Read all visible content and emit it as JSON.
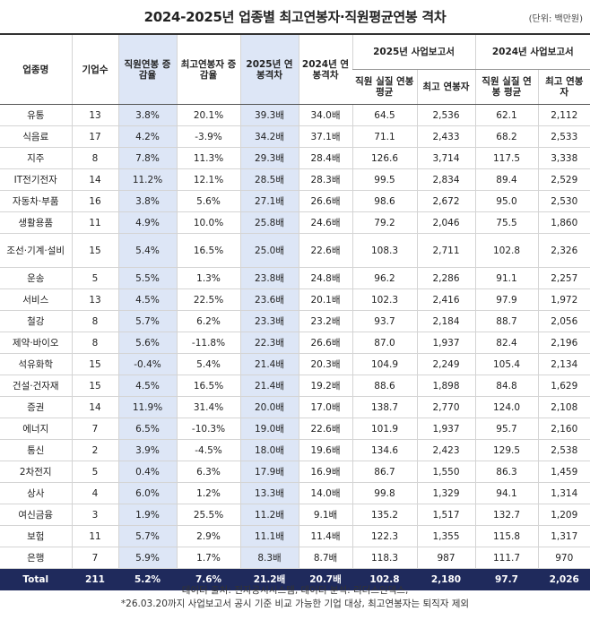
{
  "header": {
    "title": "2024-2025년 업종별 최고연봉자·직원평균연봉 격차",
    "unit": "(단위: 백만원)"
  },
  "table": {
    "columns": [
      "업종명",
      "기업수",
      "직원연봉 증감율",
      "최고연봉자 증감율",
      "2025년 연봉격차",
      "2024년 연봉격차"
    ],
    "groups": [
      "2025년 사업보고서",
      "2024년 사업보고서"
    ],
    "subcolumns": [
      "직원 실질 연봉 평균",
      "최고 연봉자",
      "직원 실질 연봉 평균",
      "최고 연봉자"
    ],
    "rows": [
      [
        "유통",
        "13",
        "3.8%",
        "20.1%",
        "39.3배",
        "34.0배",
        "64.5",
        "2,536",
        "62.1",
        "2,112"
      ],
      [
        "식음료",
        "17",
        "4.2%",
        "-3.9%",
        "34.2배",
        "37.1배",
        "71.1",
        "2,433",
        "68.2",
        "2,533"
      ],
      [
        "지주",
        "8",
        "7.8%",
        "11.3%",
        "29.3배",
        "28.4배",
        "126.6",
        "3,714",
        "117.5",
        "3,338"
      ],
      [
        "IT전기전자",
        "14",
        "11.2%",
        "12.1%",
        "28.5배",
        "28.3배",
        "99.5",
        "2,834",
        "89.4",
        "2,529"
      ],
      [
        "자동차·부품",
        "16",
        "3.8%",
        "5.6%",
        "27.1배",
        "26.6배",
        "98.6",
        "2,672",
        "95.0",
        "2,530"
      ],
      [
        "생활용품",
        "11",
        "4.9%",
        "10.0%",
        "25.8배",
        "24.6배",
        "79.2",
        "2,046",
        "75.5",
        "1,860"
      ],
      [
        "조선·기계·설비",
        "15",
        "5.4%",
        "16.5%",
        "25.0배",
        "22.6배",
        "108.3",
        "2,711",
        "102.8",
        "2,326"
      ],
      [
        "운송",
        "5",
        "5.5%",
        "1.3%",
        "23.8배",
        "24.8배",
        "96.2",
        "2,286",
        "91.1",
        "2,257"
      ],
      [
        "서비스",
        "13",
        "4.5%",
        "22.5%",
        "23.6배",
        "20.1배",
        "102.3",
        "2,416",
        "97.9",
        "1,972"
      ],
      [
        "철강",
        "8",
        "5.7%",
        "6.2%",
        "23.3배",
        "23.2배",
        "93.7",
        "2,184",
        "88.7",
        "2,056"
      ],
      [
        "제약·바이오",
        "8",
        "5.6%",
        "-11.8%",
        "22.3배",
        "26.6배",
        "87.0",
        "1,937",
        "82.4",
        "2,196"
      ],
      [
        "석유화학",
        "15",
        "-0.4%",
        "5.4%",
        "21.4배",
        "20.3배",
        "104.9",
        "2,249",
        "105.4",
        "2,134"
      ],
      [
        "건설·건자재",
        "15",
        "4.5%",
        "16.5%",
        "21.4배",
        "19.2배",
        "88.6",
        "1,898",
        "84.8",
        "1,629"
      ],
      [
        "증권",
        "14",
        "11.9%",
        "31.4%",
        "20.0배",
        "17.0배",
        "138.7",
        "2,770",
        "124.0",
        "2,108"
      ],
      [
        "에너지",
        "7",
        "6.5%",
        "-10.3%",
        "19.0배",
        "22.6배",
        "101.9",
        "1,937",
        "95.7",
        "2,160"
      ],
      [
        "통신",
        "2",
        "3.9%",
        "-4.5%",
        "18.0배",
        "19.6배",
        "134.6",
        "2,423",
        "129.5",
        "2,538"
      ],
      [
        "2차전지",
        "5",
        "0.4%",
        "6.3%",
        "17.9배",
        "16.9배",
        "86.7",
        "1,550",
        "86.3",
        "1,459"
      ],
      [
        "상사",
        "4",
        "6.0%",
        "1.2%",
        "13.3배",
        "14.0배",
        "99.8",
        "1,329",
        "94.1",
        "1,314"
      ],
      [
        "여신금융",
        "3",
        "1.9%",
        "25.5%",
        "11.2배",
        "9.1배",
        "135.2",
        "1,517",
        "132.7",
        "1,209"
      ],
      [
        "보험",
        "11",
        "5.7%",
        "2.9%",
        "11.1배",
        "11.4배",
        "122.3",
        "1,355",
        "115.8",
        "1,317"
      ],
      [
        "은행",
        "7",
        "5.9%",
        "1.7%",
        "8.3배",
        "8.7배",
        "118.3",
        "987",
        "111.7",
        "970"
      ]
    ],
    "total": [
      "Total",
      "211",
      "5.2%",
      "7.6%",
      "21.2배",
      "20.7배",
      "102.8",
      "2,180",
      "97.7",
      "2,026"
    ]
  },
  "footer": {
    "source": "데이터 출처: 전자공시시스템, 데이터 분석: 리더스인덱스,",
    "note": "*26.03.20까지 사업보고서 공시 기준 비교 가능한 기업 대상, 최고연봉자는 퇴직자 제외"
  }
}
